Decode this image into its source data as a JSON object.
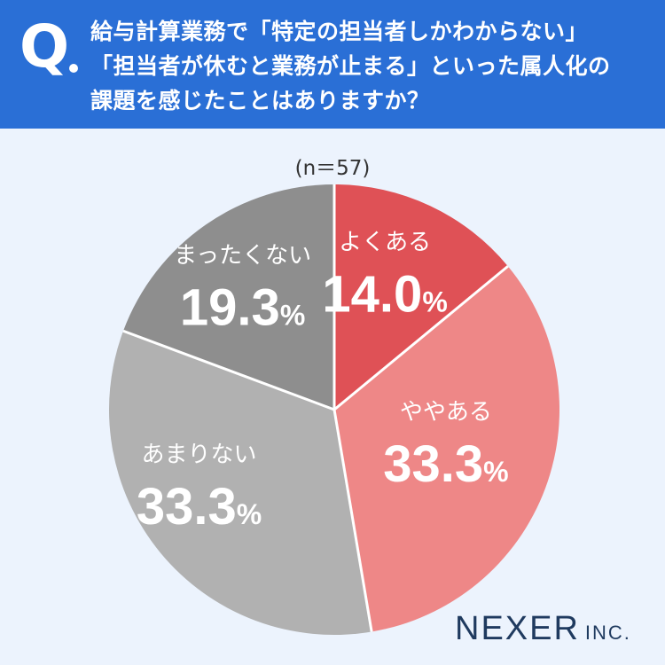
{
  "header": {
    "q_mark": "Q",
    "question_lines": [
      "給与計算業務で「特定の担当者しかわからない」",
      "「担当者が休むと業務が止まる」といった属人化の",
      "課題を感じたことはありますか？"
    ]
  },
  "sample_label": "(n＝57)",
  "chart_data": {
    "type": "pie",
    "title": "",
    "start_angle_deg": 0,
    "direction": "clockwise",
    "percent_sign": "%",
    "slices": [
      {
        "label": "よくある",
        "value": 14.0,
        "display": "14.0",
        "color": "#df5156",
        "text_color": "#ffffff"
      },
      {
        "label": "ややある",
        "value": 33.3,
        "display": "33.3",
        "color": "#ee8787",
        "text_color": "#ffffff"
      },
      {
        "label": "あまりない",
        "value": 33.3,
        "display": "33.3",
        "color": "#b1b1b1",
        "text_color": "#ffffff"
      },
      {
        "label": "まったくない",
        "value": 19.3,
        "display": "19.3",
        "color": "#8e8e8e",
        "text_color": "#ffffff"
      }
    ],
    "slice_border_color": "#ffffff"
  },
  "logo": {
    "main": "NEXER",
    "suffix": "INC."
  }
}
